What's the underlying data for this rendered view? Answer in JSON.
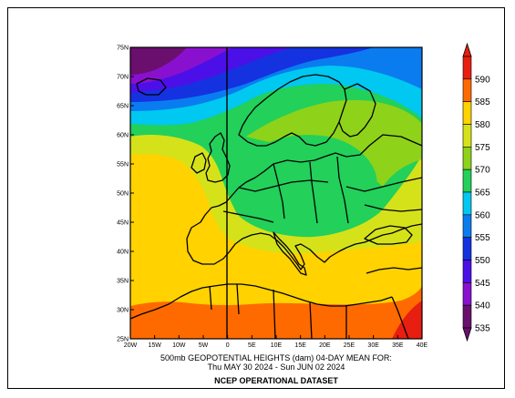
{
  "title": {
    "line1": "500mb GEOPOTENTIAL HEIGHTS (dam)     04-DAY MEAN FOR:",
    "line2": "Thu MAY 30 2024 - Sun JUN 02 2024",
    "dataset": "NCEP OPERATIONAL DATASET"
  },
  "axes": {
    "lat_ticks": [
      "75N",
      "70N",
      "65N",
      "60N",
      "55N",
      "50N",
      "45N",
      "40N",
      "35N",
      "30N",
      "25N"
    ],
    "lon_ticks": [
      "20W",
      "15W",
      "10W",
      "5W",
      "0",
      "5E",
      "10E",
      "15E",
      "20E",
      "25E",
      "30E",
      "35E",
      "40E"
    ],
    "lat_range": [
      25,
      75
    ],
    "lon_range": [
      -20,
      40
    ]
  },
  "colorbar": {
    "levels": [
      "590",
      "585",
      "580",
      "575",
      "570",
      "565",
      "560",
      "555",
      "550",
      "545",
      "540",
      "535"
    ],
    "colors": [
      "#e81e10",
      "#ff6a00",
      "#ffd200",
      "#d5e21a",
      "#8fd21a",
      "#22d05a",
      "#00c8f0",
      "#0a7cf0",
      "#1432e0",
      "#4b10e8",
      "#8a10d0",
      "#6a0f6e"
    ]
  },
  "field_colors": {
    "c535": "#6a0f6e",
    "c540": "#8a10d0",
    "c545": "#4b10e8",
    "c550": "#1432e0",
    "c555": "#0a7cf0",
    "c560": "#00c8f0",
    "c565": "#22d05a",
    "c570": "#8fd21a",
    "c575": "#d5e21a",
    "c580": "#ffd200",
    "c585": "#ff6a00",
    "c590": "#e81e10"
  }
}
